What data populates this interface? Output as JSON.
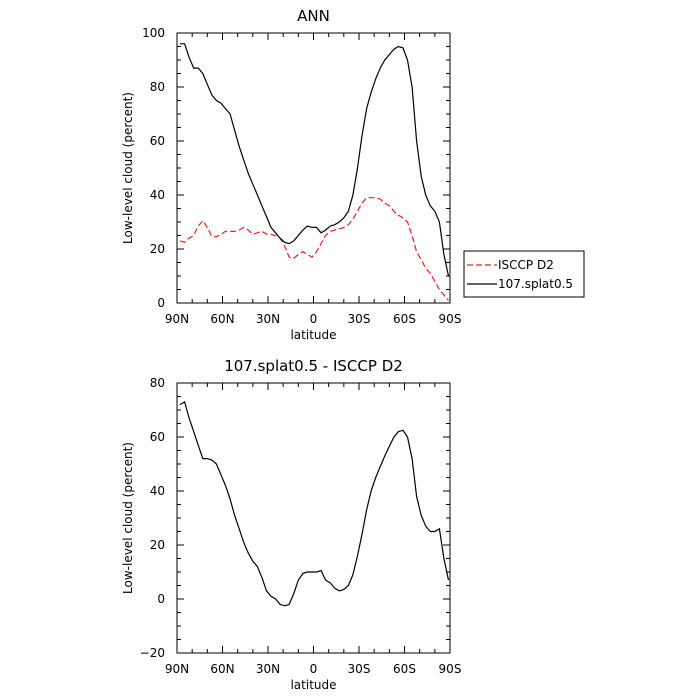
{
  "chart_data": [
    {
      "type": "line",
      "title": "ANN",
      "xlabel": "latitude",
      "ylabel": "Low-level cloud (percent)",
      "xlim": [
        90,
        -90
      ],
      "ylim": [
        0,
        100
      ],
      "xticks": [
        90,
        60,
        30,
        0,
        -30,
        -60,
        -90
      ],
      "xtick_labels": [
        "90N",
        "60N",
        "30N",
        "0",
        "30S",
        "60S",
        "90S"
      ],
      "yticks": [
        0,
        20,
        40,
        60,
        80,
        100
      ],
      "ytick_labels": [
        "0",
        "20",
        "40",
        "60",
        "80",
        "100"
      ],
      "legend_position": "outside-right",
      "grid": false,
      "series": [
        {
          "name": "ISCCP D2",
          "color": "#e8201f",
          "dash": true,
          "x": [
            88,
            85,
            82,
            79,
            76,
            73,
            70,
            67,
            64,
            61,
            58,
            55,
            52,
            49,
            46,
            43,
            40,
            37,
            34,
            31,
            28,
            25,
            22,
            19,
            16,
            13,
            10,
            7,
            4,
            1,
            -2,
            -5,
            -8,
            -11,
            -14,
            -17,
            -20,
            -23,
            -26,
            -29,
            -32,
            -35,
            -38,
            -41,
            -44,
            -47,
            -50,
            -53,
            -56,
            -59,
            -62,
            -65,
            -68,
            -71,
            -74,
            -77,
            -80,
            -83,
            -86,
            -89
          ],
          "y": [
            23,
            22.5,
            24,
            25,
            28.5,
            30.5,
            28,
            24.5,
            24.5,
            25.5,
            26.5,
            26.5,
            26.5,
            27,
            28,
            27,
            25.5,
            26,
            26.5,
            25.5,
            25.5,
            25,
            24,
            21,
            17,
            16.5,
            18,
            19,
            18,
            17,
            19,
            22,
            25,
            26.5,
            27,
            27.5,
            28,
            29,
            31,
            34,
            37,
            39,
            39,
            39,
            38.5,
            37,
            36,
            34,
            32.5,
            31.5,
            30,
            25,
            19,
            16,
            13,
            11,
            8,
            5,
            3,
            1
          ]
        },
        {
          "name": "107.splat0.5",
          "color": "#000000",
          "dash": false,
          "x": [
            88,
            85,
            82,
            79,
            76,
            73,
            70,
            67,
            64,
            61,
            58,
            55,
            52,
            49,
            46,
            43,
            40,
            37,
            34,
            31,
            28,
            25,
            22,
            19,
            16,
            13,
            10,
            7,
            4,
            1,
            -2,
            -5,
            -8,
            -11,
            -14,
            -17,
            -20,
            -23,
            -26,
            -29,
            -32,
            -35,
            -38,
            -41,
            -44,
            -47,
            -50,
            -53,
            -56,
            -59,
            -62,
            -65,
            -68,
            -71,
            -74,
            -77,
            -80,
            -83,
            -86,
            -89
          ],
          "y": [
            96,
            96,
            91,
            87,
            87,
            85,
            81,
            77,
            75,
            74,
            72,
            70,
            64,
            58,
            53,
            48,
            44,
            40,
            36,
            32,
            28,
            26,
            24,
            22.5,
            22,
            23,
            25,
            27,
            28.5,
            28,
            28,
            26,
            27,
            28.5,
            29,
            30,
            31.5,
            34,
            40,
            50,
            62,
            72,
            78,
            83,
            87,
            90,
            92,
            94,
            95,
            94.5,
            90,
            80,
            60,
            47,
            40,
            36,
            34,
            30,
            18,
            10
          ]
        }
      ]
    },
    {
      "type": "line",
      "title": "107.splat0.5 - ISCCP D2",
      "xlabel": "latitude",
      "ylabel": "Low-level cloud (percent)",
      "xlim": [
        90,
        -90
      ],
      "ylim": [
        -20,
        80
      ],
      "xticks": [
        90,
        60,
        30,
        0,
        -30,
        -60,
        -90
      ],
      "xtick_labels": [
        "90N",
        "60N",
        "30N",
        "0",
        "30S",
        "60S",
        "90S"
      ],
      "yticks": [
        -20,
        0,
        20,
        40,
        60,
        80
      ],
      "ytick_labels": [
        "−20",
        "0",
        "20",
        "40",
        "60",
        "80"
      ],
      "grid": false,
      "series": [
        {
          "color": "#000000",
          "dash": false,
          "x": [
            88,
            85,
            82,
            79,
            76,
            73,
            70,
            67,
            64,
            61,
            58,
            55,
            52,
            49,
            46,
            43,
            40,
            37,
            34,
            31,
            28,
            25,
            22,
            19,
            16,
            13,
            10,
            7,
            4,
            1,
            -2,
            -5,
            -8,
            -11,
            -14,
            -17,
            -20,
            -23,
            -26,
            -29,
            -32,
            -35,
            -38,
            -41,
            -44,
            -47,
            -50,
            -53,
            -56,
            -59,
            -62,
            -65,
            -68,
            -71,
            -74,
            -77,
            -80,
            -83,
            -86,
            -89
          ],
          "y": [
            72,
            73,
            67,
            62,
            57,
            52,
            52,
            51.5,
            50,
            46,
            42,
            37,
            31,
            26,
            21,
            17,
            14,
            12,
            8,
            3,
            1,
            0,
            -2,
            -2.5,
            -2,
            2,
            7,
            9.5,
            10,
            10,
            10,
            10.5,
            7,
            6,
            4,
            3,
            3.5,
            5,
            9,
            16,
            24,
            33,
            40,
            45,
            49,
            53,
            56.5,
            60,
            62,
            62.5,
            60,
            52,
            38,
            31,
            27,
            25,
            25,
            26,
            15,
            7
          ]
        }
      ]
    }
  ]
}
